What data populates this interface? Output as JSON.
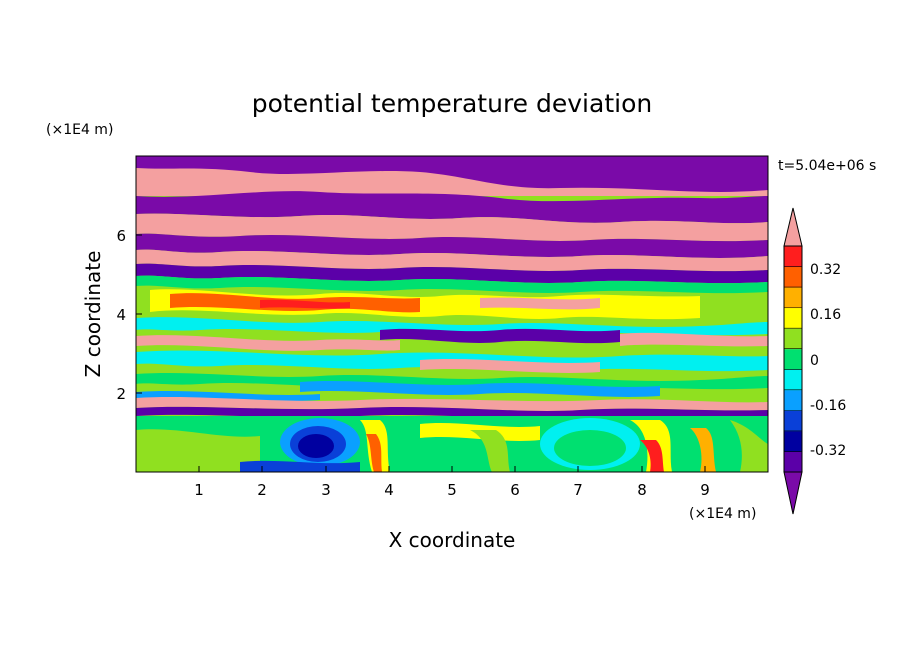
{
  "chart_data": {
    "type": "heatmap",
    "title": "potential temperature deviation",
    "xlabel": "X coordinate",
    "ylabel": "Z coordinate",
    "x_unit": "(×1E4 m)",
    "y_unit": "(×1E4 m)",
    "time_label": "t=5.04e+06 s",
    "xlim": [
      0,
      10
    ],
    "ylim": [
      0,
      8
    ],
    "x_ticks": [
      "1",
      "2",
      "3",
      "4",
      "5",
      "6",
      "7",
      "8",
      "9"
    ],
    "y_ticks": [
      "2",
      "4",
      "6"
    ],
    "colorbar": {
      "labels": [
        "0.32",
        "0.16",
        "0",
        "-0.16",
        "-0.32"
      ],
      "label_values": [
        0.32,
        0.16,
        0,
        -0.16,
        -0.32
      ],
      "levels": [
        -0.4,
        -0.32,
        -0.24,
        -0.16,
        -0.08,
        0,
        0.08,
        0.16,
        0.24,
        0.32,
        0.4
      ],
      "colors": [
        "#5b00a8",
        "#0000a0",
        "#0a40d8",
        "#0aa0ff",
        "#00f0f0",
        "#00e070",
        "#90e020",
        "#ffff00",
        "#ffb000",
        "#ff6000",
        "#ff1e1e"
      ],
      "under_color": "#7a0aa8",
      "over_color": "#f4a0a0",
      "extend": "both"
    },
    "grid": false
  }
}
